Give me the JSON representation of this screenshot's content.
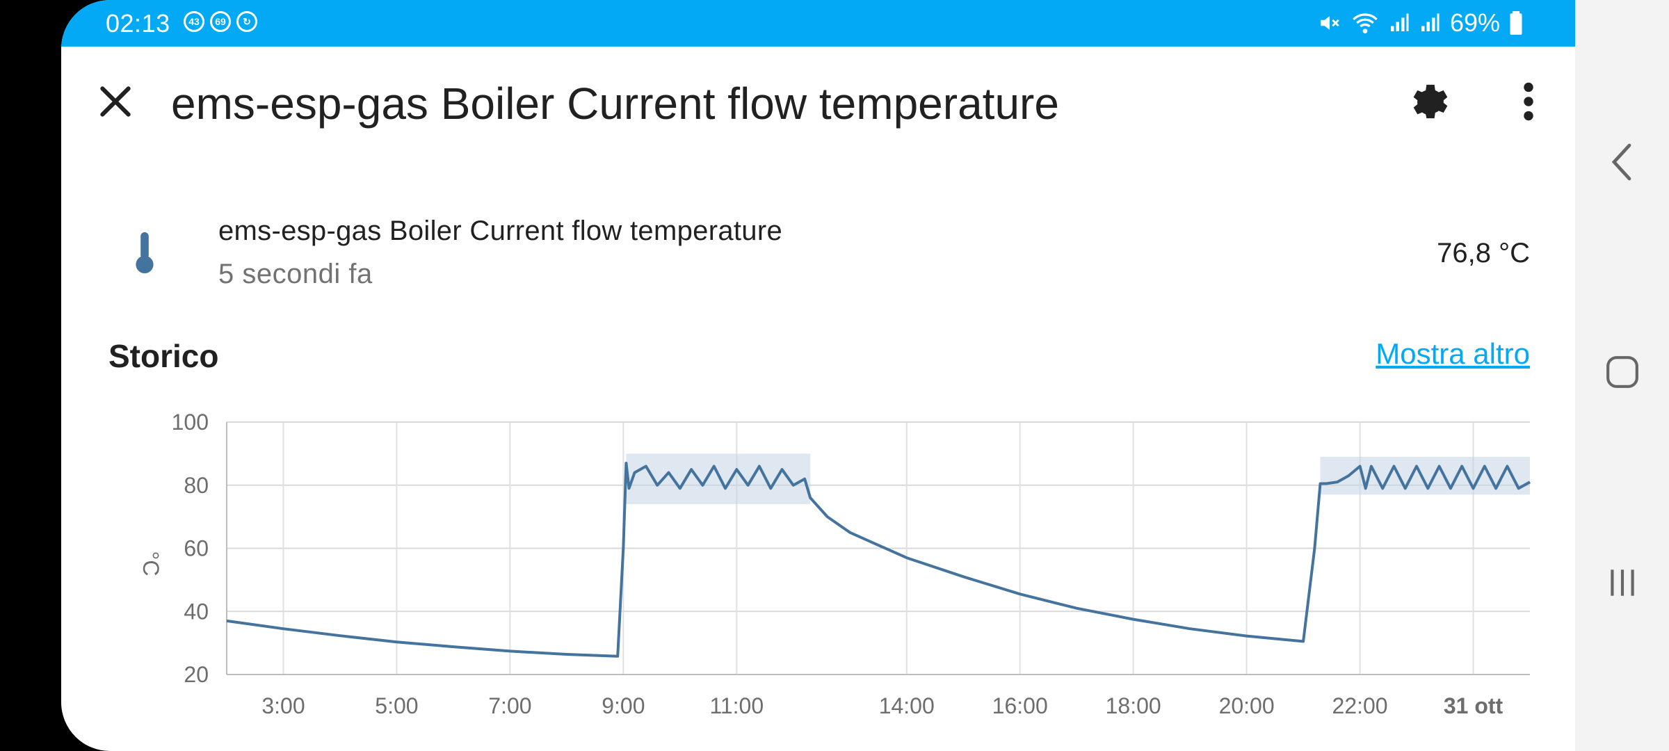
{
  "status_bar": {
    "time": "02:13",
    "badges": [
      "43",
      "69"
    ],
    "battery": "69%"
  },
  "dialog": {
    "title": "ems-esp-gas Boiler Current flow temperature",
    "icons": [
      "close-icon",
      "gear-icon",
      "more-vert-icon"
    ]
  },
  "entity": {
    "icon": "thermometer-icon",
    "name": "ems-esp-gas Boiler Current flow temperature",
    "last_changed": "5 secondi fa",
    "state": "76,8 °C"
  },
  "history": {
    "title": "Storico",
    "more_link": "Mostra altro"
  },
  "colors": {
    "status_bar": "#03a9f4",
    "line": "#44739e",
    "band": "#c4d4e3",
    "link": "#03a9f4"
  },
  "chart_data": {
    "type": "line",
    "ylabel": "°C",
    "ylim": [
      20,
      100
    ],
    "yticks": [
      20,
      40,
      60,
      80,
      100
    ],
    "x_unit": "hours since 02:00",
    "xticks": [
      {
        "label": "3:00",
        "x": 1
      },
      {
        "label": "5:00",
        "x": 3
      },
      {
        "label": "7:00",
        "x": 5
      },
      {
        "label": "9:00",
        "x": 7
      },
      {
        "label": "11:00",
        "x": 9
      },
      {
        "label": "14:00",
        "x": 12
      },
      {
        "label": "16:00",
        "x": 14
      },
      {
        "label": "18:00",
        "x": 16
      },
      {
        "label": "20:00",
        "x": 18
      },
      {
        "label": "22:00",
        "x": 20
      },
      {
        "label": "31 ott",
        "x": 22,
        "bold": true
      }
    ],
    "xlim": [
      0.0,
      23.0
    ],
    "grid": true,
    "series": [
      {
        "name": "ems-esp-gas Boiler Current flow temperature",
        "x": [
          0.0,
          1.0,
          2.0,
          3.0,
          4.0,
          5.0,
          6.0,
          6.9,
          7.0,
          7.05,
          7.1,
          7.2,
          7.4,
          7.6,
          7.8,
          8.0,
          8.2,
          8.4,
          8.6,
          8.8,
          9.0,
          9.2,
          9.4,
          9.6,
          9.8,
          10.0,
          10.2,
          10.3,
          10.4,
          10.6,
          11.0,
          12.0,
          13.0,
          14.0,
          15.0,
          16.0,
          17.0,
          18.0,
          19.0,
          19.2,
          19.3,
          19.4,
          19.6,
          19.8,
          20.0,
          20.1,
          20.2,
          20.4,
          20.6,
          20.8,
          21.0,
          21.2,
          21.4,
          21.6,
          21.8,
          22.0,
          22.2,
          22.4,
          22.6,
          22.8,
          23.0
        ],
        "y": [
          37,
          34.5,
          32.3,
          30.3,
          28.8,
          27.4,
          26.4,
          25.8,
          60,
          87,
          79,
          84,
          86,
          80,
          84,
          79,
          85,
          80,
          86,
          79,
          85,
          80,
          86,
          79,
          85,
          80,
          82,
          76,
          74,
          70,
          65,
          57,
          51,
          45.5,
          41,
          37.5,
          34.5,
          32.2,
          30.5,
          60,
          80.5,
          80.5,
          81,
          83,
          86,
          79,
          86,
          79,
          86,
          79,
          86,
          79,
          86,
          79,
          86,
          79,
          86,
          79,
          86,
          79,
          81
        ]
      }
    ],
    "band": [
      {
        "x": [
          7.05,
          10.3
        ],
        "ylow": 74,
        "yhigh": 90
      },
      {
        "x": [
          19.3,
          23.0
        ],
        "ylow": 77,
        "yhigh": 89
      }
    ]
  }
}
